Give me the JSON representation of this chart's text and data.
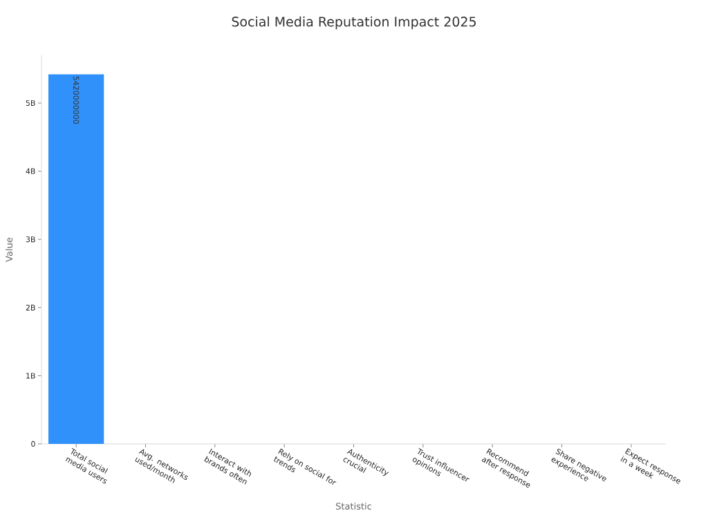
{
  "chart_data": {
    "type": "bar",
    "title": "Social Media Reputation Impact 2025",
    "xlabel": "Statistic",
    "ylabel": "Value",
    "categories": [
      "Total social media users",
      "Avg. networks used/month",
      "Interact with brands often",
      "Rely on social for trends",
      "Authenticity crucial",
      "Trust influencer opinions",
      "Recommend after response",
      "Share negative experience",
      "Expect response in a week"
    ],
    "values": [
      5420000000,
      0,
      0,
      0,
      0,
      0,
      0,
      0,
      0
    ],
    "value_labels": [
      "5420000000",
      null,
      null,
      null,
      null,
      null,
      null,
      null,
      null
    ],
    "color": "#3091fa",
    "ylim": [
      0,
      5700000000
    ],
    "yticks": [
      0,
      {
        "value": 1000000000,
        "label": "1B"
      },
      {
        "value": 2000000000,
        "label": "2B"
      },
      {
        "value": 3000000000,
        "label": "3B"
      },
      {
        "value": 4000000000,
        "label": "4B"
      },
      {
        "value": 5000000000,
        "label": "5B"
      }
    ]
  }
}
